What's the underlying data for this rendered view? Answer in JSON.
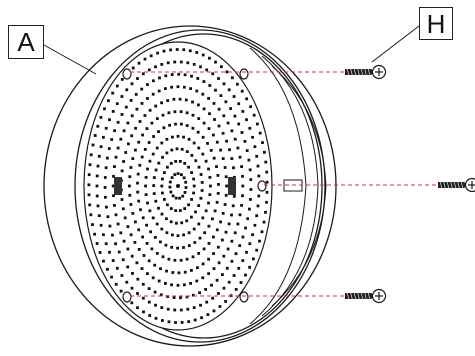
{
  "callouts": {
    "part_a": "A",
    "part_h": "H"
  },
  "colors": {
    "line": "#1a1a1a",
    "dots": "#111111",
    "guide": "#e03030",
    "background": "#ffffff"
  },
  "screws": {
    "count": 3,
    "icon": "screw-icon"
  }
}
